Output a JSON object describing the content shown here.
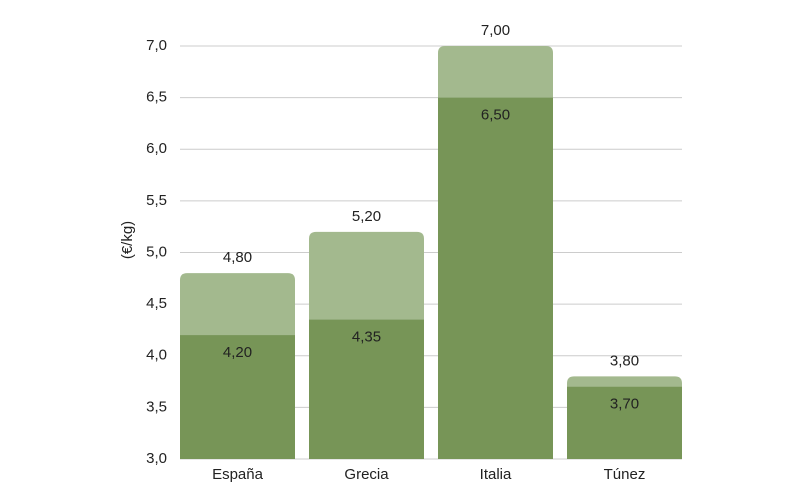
{
  "chart_data": {
    "type": "overlap-bar",
    "y_label": "(€/kg)",
    "categories": [
      "España",
      "Grecia",
      "Italia",
      "Túnez"
    ],
    "series": [
      {
        "color": "#a3b98e",
        "values": [
          4.8,
          5.2,
          7.0,
          3.8
        ],
        "value_labels": [
          "4,80",
          "5,20",
          "7,00",
          "3,80"
        ]
      },
      {
        "color": "#779557",
        "values": [
          4.2,
          4.35,
          6.5,
          3.7
        ],
        "value_labels": [
          "4,20",
          "4,35",
          "6,50",
          "3,70"
        ]
      }
    ],
    "ylim": [
      3,
      7
    ],
    "yticks": [
      {
        "value": 3,
        "label": "3,0"
      },
      {
        "value": 3.5,
        "label": "3,5"
      },
      {
        "value": 4,
        "label": "4,0"
      },
      {
        "value": 4.5,
        "label": "4,5"
      },
      {
        "value": 5,
        "label": "5,0"
      },
      {
        "value": 5.5,
        "label": "5,5"
      },
      {
        "value": 6,
        "label": "6,0"
      },
      {
        "value": 6.5,
        "label": "6,5"
      },
      {
        "value": 7,
        "label": "7,0"
      }
    ],
    "grid": true
  }
}
